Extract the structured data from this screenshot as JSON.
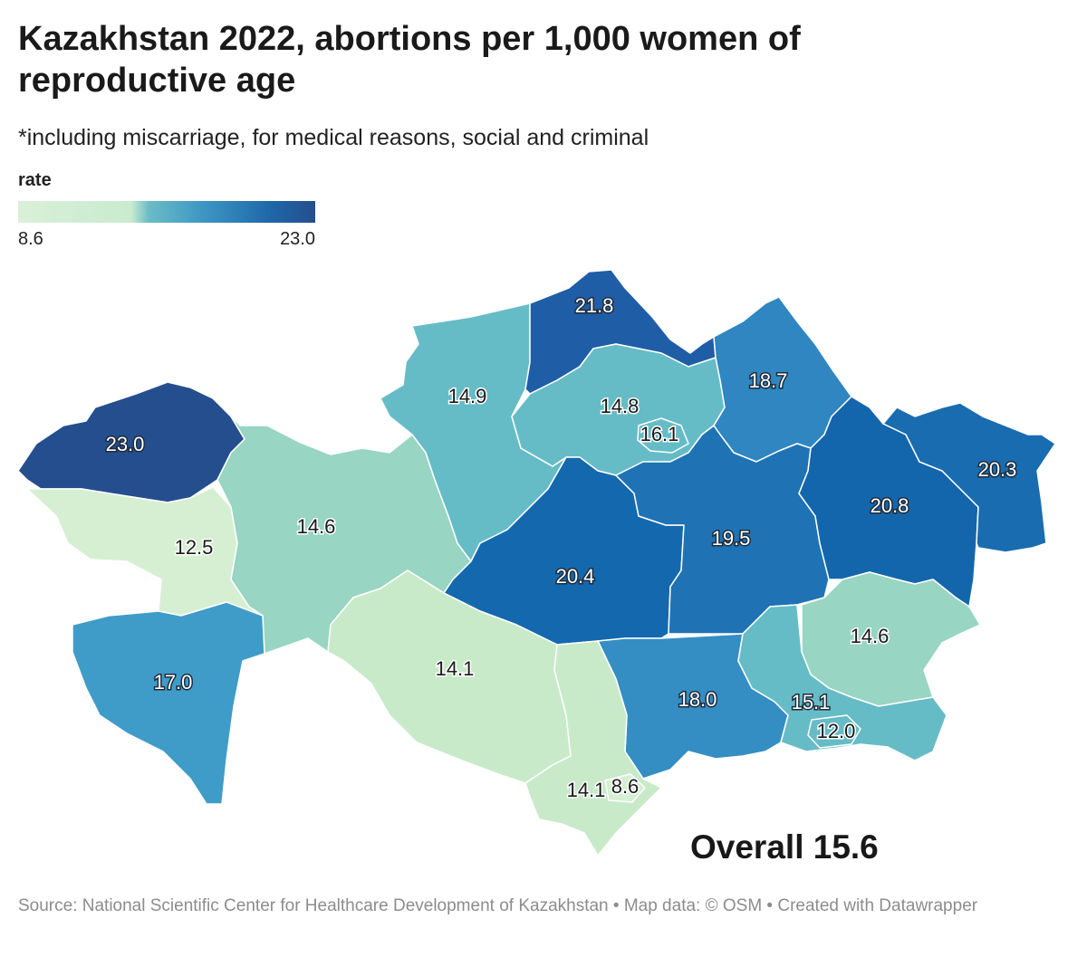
{
  "title": "Kazakhstan 2022, abortions per 1,000 women of reproductive age",
  "subtitle": "*including miscarriage, for medical reasons, social and criminal",
  "legend": {
    "title": "rate",
    "min": "8.6",
    "max": "23.0",
    "colors": [
      "#d9f0d8",
      "#c9ebcf",
      "#6bbcc7",
      "#3d97c4",
      "#1f67a9",
      "#254e8f"
    ]
  },
  "regions": [
    {
      "label": "23.0",
      "value": 23.0,
      "color": "#254e8f"
    },
    {
      "label": "12.5",
      "value": 12.5,
      "color": "#d6efd2"
    },
    {
      "label": "14.6",
      "value": 14.6,
      "color": "#98d5c2"
    },
    {
      "label": "17.0",
      "value": 17.0,
      "color": "#3f9cc8"
    },
    {
      "label": "14.9",
      "value": 14.9,
      "color": "#66bcc6"
    },
    {
      "label": "21.8",
      "value": 21.8,
      "color": "#1f5ea6"
    },
    {
      "label": "14.8",
      "value": 14.8,
      "color": "#66bcc6"
    },
    {
      "label": "16.1",
      "value": 16.1,
      "color": "#66bcc6"
    },
    {
      "label": "18.7",
      "value": 18.7,
      "color": "#2f86c0"
    },
    {
      "label": "20.4",
      "value": 20.4,
      "color": "#1469ae"
    },
    {
      "label": "19.5",
      "value": 19.5,
      "color": "#1f73b5"
    },
    {
      "label": "20.8",
      "value": 20.8,
      "color": "#1466ac"
    },
    {
      "label": "20.3",
      "value": 20.3,
      "color": "#1a6cb0"
    },
    {
      "label": "14.1",
      "value": 14.1,
      "color": "#c8eac9"
    },
    {
      "label": "14.6",
      "value": 14.6,
      "color": "#98d5c2"
    },
    {
      "label": "18.0",
      "value": 18.0,
      "color": "#348ec4"
    },
    {
      "label": "15.1",
      "value": 15.1,
      "color": "#66bcc6"
    },
    {
      "label": "12.0",
      "value": 12.0,
      "color": "#66bcc6"
    },
    {
      "label": "14.1",
      "value": 14.1,
      "color": "#c8eac9"
    },
    {
      "label": "8.6",
      "value": 8.6,
      "color": "#d6efd2"
    }
  ],
  "overall": "Overall 15.6",
  "source": "Source: National Scientific Center for Healthcare Development of Kazakhstan • Map data: © OSM  • Created with Datawrapper"
}
